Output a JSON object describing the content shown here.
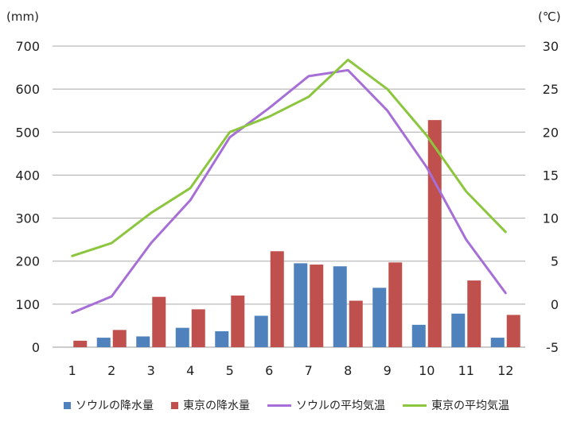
{
  "chart_data": {
    "type": "bar+line",
    "categories": [
      "1",
      "2",
      "3",
      "4",
      "5",
      "6",
      "7",
      "8",
      "9",
      "10",
      "11",
      "12"
    ],
    "left_axis": {
      "unit": "(mm)",
      "ylim": [
        0,
        700
      ],
      "ticks": [
        "0",
        "100",
        "200",
        "300",
        "400",
        "500",
        "600",
        "700"
      ]
    },
    "right_axis": {
      "unit": "(℃)",
      "ylim": [
        -5,
        30
      ],
      "ticks": [
        "-5",
        "0",
        "5",
        "10",
        "15",
        "20",
        "25",
        "30"
      ]
    },
    "grid": true,
    "legend_position": "bottom",
    "series": [
      {
        "name": "ソウルの降水量",
        "type": "bar",
        "axis": "left",
        "color": "#4f81bd",
        "values": [
          0,
          22,
          25,
          45,
          37,
          73,
          195,
          188,
          138,
          52,
          78,
          22
        ]
      },
      {
        "name": "東京の降水量",
        "type": "bar",
        "axis": "left",
        "color": "#c0504d",
        "values": [
          15,
          40,
          117,
          88,
          120,
          223,
          192,
          108,
          197,
          528,
          155,
          75
        ]
      },
      {
        "name": "ソウルの平均気温",
        "type": "line",
        "axis": "right",
        "color": "#a66fd8",
        "values": [
          -1.0,
          0.9,
          7.1,
          12.1,
          19.4,
          22.8,
          26.5,
          27.2,
          22.5,
          15.9,
          7.5,
          1.3
        ]
      },
      {
        "name": "東京の平均気温",
        "type": "line",
        "axis": "right",
        "color": "#8cc63f",
        "values": [
          5.6,
          7.1,
          10.6,
          13.5,
          20.0,
          21.8,
          24.1,
          28.4,
          25.0,
          19.6,
          13.1,
          8.4
        ]
      }
    ]
  }
}
